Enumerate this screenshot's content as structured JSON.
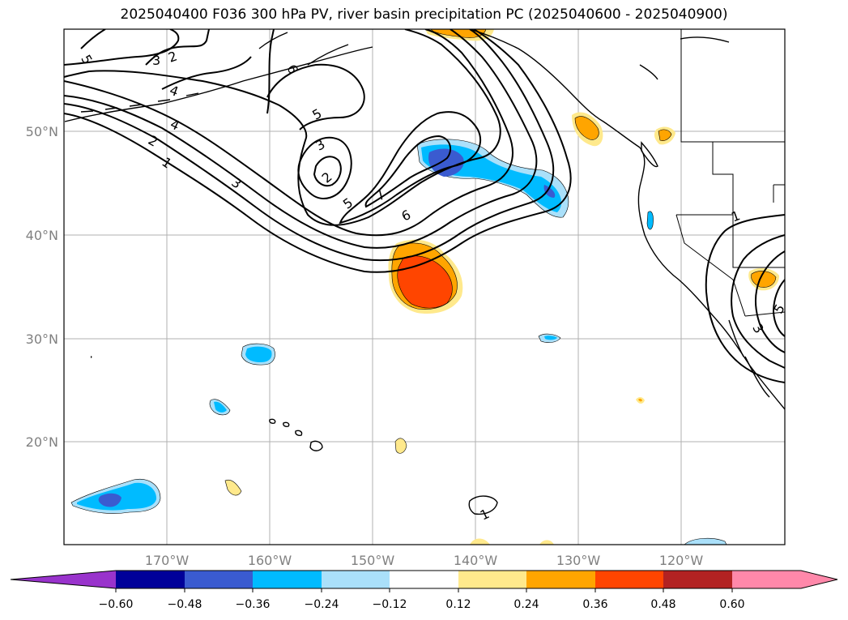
{
  "title": "2025040400 F036 300 hPa PV, river basin precipitation PC (2025040600 - 2025040900)",
  "map": {
    "lat_labels": [
      "50°N",
      "40°N",
      "30°N",
      "20°N"
    ],
    "lon_labels": [
      "170°W",
      "160°W",
      "150°W",
      "140°W",
      "130°W",
      "120°W"
    ],
    "contour_labels": [
      "5",
      "3",
      "2",
      "4",
      "6",
      "4",
      "2",
      "1",
      "3",
      "5",
      "3",
      "2",
      "5",
      "7",
      "6",
      "1",
      "1",
      "3",
      "5"
    ]
  },
  "colorbar": {
    "colors": {
      "under": "#9933cc",
      "c1": "#000099",
      "c2": "#3a5bd0",
      "c3": "#00bbff",
      "c4": "#aae0fa",
      "c5": "#ffffff",
      "c6": "#ffe98c",
      "c7": "#ffa500",
      "c8": "#ff4500",
      "c9": "#b22222",
      "c10": "#ff88aa"
    },
    "tick_labels": [
      "−0.60",
      "−0.48",
      "−0.36",
      "−0.24",
      "−0.12",
      "0.12",
      "0.24",
      "0.36",
      "0.48",
      "0.60"
    ]
  }
}
